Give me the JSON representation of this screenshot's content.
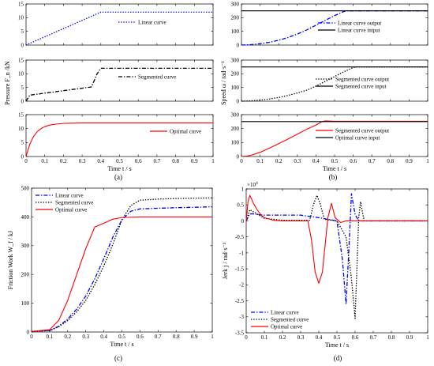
{
  "chart_data": [
    {
      "id": "a1",
      "type": "line",
      "xlim": [
        0,
        1
      ],
      "ylim": [
        0,
        15
      ],
      "xticks": [
        0,
        0.1,
        0.2,
        0.3,
        0.4,
        0.5,
        0.6,
        0.7,
        0.8,
        0.9,
        1
      ],
      "xtick_labels": [],
      "yticks": [
        0,
        5,
        10,
        15
      ],
      "ytick_labels": [
        "0",
        "5",
        "10",
        "15"
      ],
      "legend_position": "right",
      "series": [
        {
          "name": "Linear curve",
          "color": "#0000ff",
          "dash": "dotted",
          "x": [
            0,
            0.4,
            1
          ],
          "y": [
            0,
            12,
            12
          ]
        }
      ]
    },
    {
      "id": "a2",
      "type": "line",
      "xlim": [
        0,
        1
      ],
      "ylim": [
        0,
        15
      ],
      "xticks": [
        0,
        0.1,
        0.2,
        0.3,
        0.4,
        0.5,
        0.6,
        0.7,
        0.8,
        0.9,
        1
      ],
      "xtick_labels": [],
      "yticks": [
        0,
        5,
        10,
        15
      ],
      "ytick_labels": [
        "0",
        "5",
        "10",
        "15"
      ],
      "legend_position": "right",
      "series": [
        {
          "name": "Segmented curve",
          "color": "#000000",
          "dash": "dashdot",
          "x": [
            0,
            0.02,
            0.35,
            0.38,
            0.4,
            1
          ],
          "y": [
            0,
            2.2,
            5.2,
            10,
            12,
            12
          ]
        }
      ]
    },
    {
      "id": "a3",
      "type": "line",
      "xlim": [
        0,
        1
      ],
      "ylim": [
        0,
        15
      ],
      "xticks": [
        0,
        0.1,
        0.2,
        0.3,
        0.4,
        0.5,
        0.6,
        0.7,
        0.8,
        0.9,
        1
      ],
      "xtick_labels": [
        "0",
        "0.1",
        "0.2",
        "0.3",
        "0.4",
        "0.5",
        "0.6",
        "0.7",
        "0.8",
        "0.9",
        "1"
      ],
      "yticks": [
        0,
        5,
        10,
        15
      ],
      "ytick_labels": [
        "0",
        "5",
        "10",
        "15"
      ],
      "xlabel": "Time t / s",
      "legend_position": "right",
      "series": [
        {
          "name": "Optimal curve",
          "color": "#ff0000",
          "dash": "solid",
          "x": [
            0,
            0.02,
            0.04,
            0.06,
            0.08,
            0.1,
            0.13,
            0.16,
            0.2,
            0.25,
            0.3,
            0.4,
            0.5,
            1
          ],
          "y": [
            0,
            4.4,
            7.2,
            8.9,
            10.0,
            10.7,
            11.3,
            11.6,
            11.85,
            11.95,
            12,
            12,
            12,
            12
          ]
        }
      ]
    },
    {
      "id": "b1",
      "type": "line",
      "xlim": [
        0,
        1
      ],
      "ylim": [
        0,
        300
      ],
      "xticks": [
        0,
        0.1,
        0.2,
        0.3,
        0.4,
        0.5,
        0.6,
        0.7,
        0.8,
        0.9,
        1
      ],
      "xtick_labels": [],
      "yticks": [
        0,
        100,
        200,
        300
      ],
      "ytick_labels": [
        "0",
        "100",
        "200",
        "300"
      ],
      "legend_position": "right",
      "series": [
        {
          "name": "Linear curve output",
          "color": "#0000ff",
          "dash": "dashdot",
          "x": [
            0,
            0.05,
            0.1,
            0.15,
            0.2,
            0.25,
            0.3,
            0.35,
            0.4,
            0.45,
            0.5,
            0.55,
            0.57,
            0.6,
            1
          ],
          "y": [
            0,
            3,
            10,
            20,
            35,
            55,
            80,
            110,
            145,
            180,
            215,
            245,
            250,
            250,
            250
          ]
        },
        {
          "name": "Linear curve intput",
          "color": "#000000",
          "dash": "solid",
          "x": [
            0,
            1
          ],
          "y": [
            250,
            250
          ]
        }
      ]
    },
    {
      "id": "b2",
      "type": "line",
      "xlim": [
        0,
        1
      ],
      "ylim": [
        0,
        300
      ],
      "xticks": [
        0,
        0.1,
        0.2,
        0.3,
        0.4,
        0.5,
        0.6,
        0.7,
        0.8,
        0.9,
        1
      ],
      "xtick_labels": [],
      "yticks": [
        0,
        100,
        200,
        300
      ],
      "ytick_labels": [
        "0",
        "100",
        "200",
        "300"
      ],
      "legend_position": "right",
      "series": [
        {
          "name": "Segmented curve output",
          "color": "#000000",
          "dash": "dotted",
          "x": [
            0,
            0.05,
            0.1,
            0.15,
            0.2,
            0.25,
            0.3,
            0.35,
            0.4,
            0.45,
            0.5,
            0.55,
            0.6,
            0.62,
            1
          ],
          "y": [
            0,
            2,
            8,
            16,
            27,
            42,
            60,
            80,
            110,
            145,
            180,
            215,
            245,
            250,
            250
          ]
        },
        {
          "name": "Segmented curve input",
          "color": "#000000",
          "dash": "solid",
          "x": [
            0,
            1
          ],
          "y": [
            250,
            250
          ]
        }
      ]
    },
    {
      "id": "b3",
      "type": "line",
      "xlim": [
        0,
        1
      ],
      "ylim": [
        0,
        300
      ],
      "xticks": [
        0,
        0.1,
        0.2,
        0.3,
        0.4,
        0.5,
        0.6,
        0.7,
        0.8,
        0.9,
        1
      ],
      "xtick_labels": [
        "0",
        "0.1",
        "0.2",
        "0.3",
        "0.4",
        "0.5",
        "0.6",
        "0.7",
        "0.8",
        "0.9",
        "1"
      ],
      "yticks": [
        0,
        100,
        200,
        300
      ],
      "ytick_labels": [
        "0",
        "100",
        "200",
        "300"
      ],
      "xlabel": "Time t / s",
      "legend_position": "right",
      "series": [
        {
          "name": "Segmented curve output",
          "color": "#ff0000",
          "dash": "solid",
          "x": [
            0,
            0.03,
            0.06,
            0.1,
            0.15,
            0.2,
            0.25,
            0.3,
            0.35,
            0.4,
            0.43,
            0.45,
            0.5,
            1
          ],
          "y": [
            0,
            3,
            12,
            30,
            60,
            92,
            125,
            160,
            195,
            225,
            248,
            255,
            252,
            252
          ]
        },
        {
          "name": "Optimal curve input",
          "color": "#000000",
          "dash": "solid",
          "x": [
            0,
            1
          ],
          "y": [
            250,
            250
          ]
        }
      ]
    },
    {
      "id": "c",
      "type": "line",
      "xlim": [
        0,
        1
      ],
      "ylim": [
        0,
        500
      ],
      "xticks": [
        0,
        0.1,
        0.2,
        0.3,
        0.4,
        0.5,
        0.6,
        0.7,
        0.8,
        0.9,
        1
      ],
      "xtick_labels": [
        "0",
        "0.1",
        "0.2",
        "0.3",
        "0.4",
        "0.5",
        "0.6",
        "0.7",
        "0.8",
        "0.9",
        "1"
      ],
      "yticks": [
        0,
        100,
        200,
        300,
        400,
        500
      ],
      "ytick_labels": [
        "0",
        "100",
        "200",
        "300",
        "400",
        "500"
      ],
      "xlabel": "Time t / s",
      "ylabel": "Friction Work W_f / kJ",
      "legend_position": "top-left",
      "series": [
        {
          "name": "Linear curve",
          "color": "#0000ff",
          "dash": "dashdot",
          "x": [
            0,
            0.1,
            0.15,
            0.2,
            0.25,
            0.3,
            0.35,
            0.4,
            0.45,
            0.5,
            0.55,
            0.6,
            0.7,
            0.8,
            1
          ],
          "y": [
            2,
            5,
            20,
            45,
            80,
            125,
            185,
            255,
            330,
            390,
            420,
            428,
            430,
            432,
            435
          ]
        },
        {
          "name": "Segmented curve",
          "color": "#000000",
          "dash": "dotted",
          "x": [
            0,
            0.1,
            0.15,
            0.2,
            0.25,
            0.3,
            0.35,
            0.4,
            0.45,
            0.5,
            0.55,
            0.6,
            0.7,
            0.8,
            1
          ],
          "y": [
            2,
            5,
            18,
            40,
            70,
            110,
            165,
            230,
            305,
            390,
            440,
            458,
            462,
            464,
            466
          ]
        },
        {
          "name": "Optimal curve",
          "color": "#ff0000",
          "dash": "solid",
          "x": [
            0,
            0.1,
            0.15,
            0.2,
            0.25,
            0.3,
            0.35,
            0.4,
            0.45,
            0.5,
            0.6,
            0.8,
            1
          ],
          "y": [
            2,
            8,
            40,
            110,
            200,
            290,
            365,
            378,
            392,
            398,
            400,
            400,
            400
          ]
        }
      ]
    },
    {
      "id": "d",
      "type": "line",
      "xlim": [
        0,
        1
      ],
      "ylim": [
        -3.5,
        1
      ],
      "xticks": [
        0,
        0.1,
        0.2,
        0.3,
        0.4,
        0.5,
        0.6,
        0.7,
        0.8,
        0.9,
        1
      ],
      "xtick_labels": [
        "0",
        "0.1",
        "0.2",
        "0.3",
        "0.4",
        "0.5",
        "0.6",
        "0.7",
        "0.8",
        "0.9",
        "1"
      ],
      "yticks": [
        -3.5,
        -3,
        -2.5,
        -2,
        -1.5,
        -1,
        -0.5,
        0,
        0.5,
        1
      ],
      "ytick_labels": [
        "-3.5",
        "-3",
        "-2.5",
        "-2",
        "-1.5",
        "-1",
        "-0.5",
        "0",
        "0.5",
        "1"
      ],
      "exponent_label": "×10",
      "exponent_power": "4",
      "xlabel": "Time t / s",
      "ylabel": "Jerk j / rad·s⁻³",
      "legend_position": "bottom-left",
      "series": [
        {
          "name": "Linear curve",
          "color": "#0000ff",
          "dash": "dashdot",
          "x": [
            0,
            0.02,
            0.04,
            0.06,
            0.1,
            0.2,
            0.3,
            0.4,
            0.45,
            0.5,
            0.53,
            0.55,
            0.565,
            0.58,
            0.6,
            0.62,
            1
          ],
          "y": [
            0,
            0.22,
            0.22,
            0.2,
            0.18,
            0.18,
            0.18,
            0.1,
            0.05,
            0,
            -1.2,
            -2.6,
            -1.0,
            0.85,
            0.2,
            0,
            0
          ]
        },
        {
          "name": "Segmented curve",
          "color": "#000000",
          "dash": "dotted",
          "x": [
            0,
            0.02,
            0.05,
            0.1,
            0.2,
            0.35,
            0.37,
            0.39,
            0.41,
            0.43,
            0.5,
            0.55,
            0.58,
            0.6,
            0.62,
            0.63,
            0.65,
            1
          ],
          "y": [
            0,
            0.35,
            0.25,
            0.08,
            0.02,
            0.02,
            0.5,
            0.8,
            0.5,
            0.05,
            0,
            -0.5,
            -1.8,
            -3.05,
            0.1,
            0.6,
            0,
            0
          ]
        },
        {
          "name": "Optimal curve",
          "color": "#ff0000",
          "dash": "solid",
          "x": [
            0,
            0.01,
            0.02,
            0.04,
            0.06,
            0.08,
            0.1,
            0.15,
            0.2,
            0.3,
            0.34,
            0.36,
            0.38,
            0.4,
            0.42,
            0.45,
            0.47,
            0.49,
            0.52,
            0.55,
            1
          ],
          "y": [
            0,
            0.6,
            0.8,
            0.55,
            0.35,
            0.2,
            0.1,
            0.02,
            0,
            0,
            0,
            -0.6,
            -1.6,
            -1.95,
            -1.6,
            0.1,
            0.55,
            0.1,
            -0.05,
            0,
            0
          ]
        }
      ]
    }
  ],
  "labels": {
    "pressure_ylabel": "Pressure F_n /kN",
    "speed_ylabel": "Speed ω / rad·s⁻¹",
    "caption_a": "(a)",
    "caption_b": "(b)",
    "caption_c": "(c)",
    "caption_d": "(d)"
  }
}
